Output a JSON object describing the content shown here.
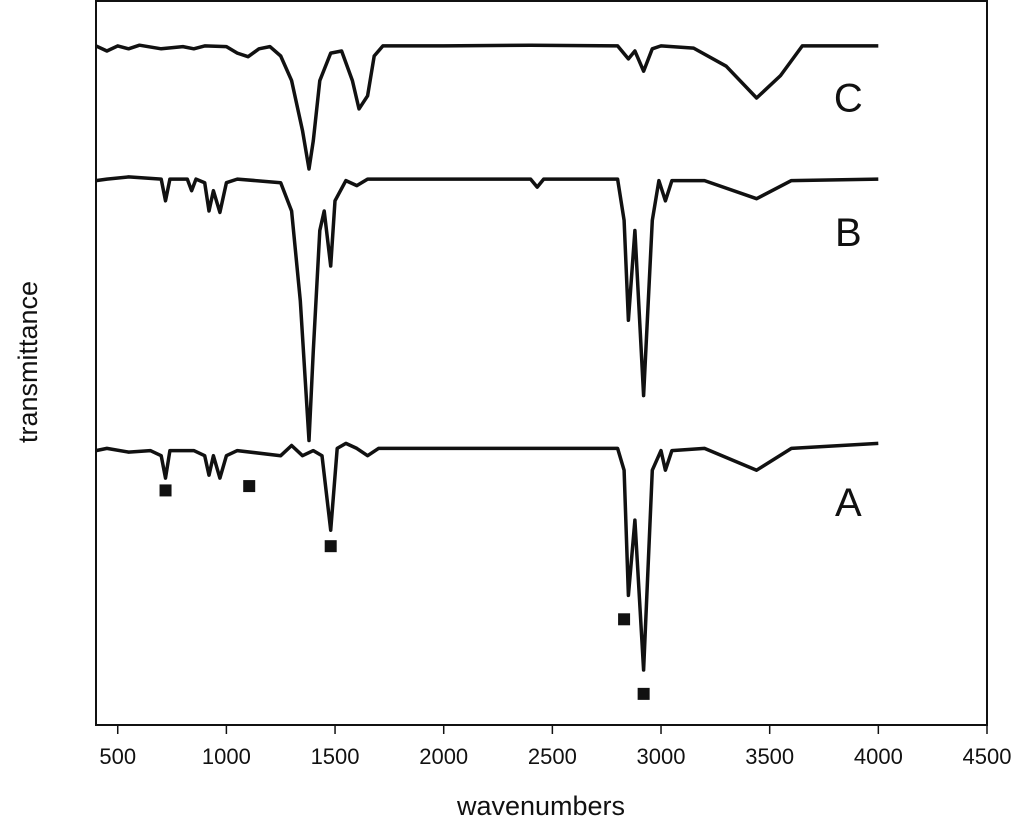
{
  "chart_data": {
    "type": "line",
    "x_label": "wavenumbers",
    "y_label": "transmittance",
    "xlim": [
      400,
      4500
    ],
    "ylim": [
      0,
      100
    ],
    "xticks": [
      500,
      1000,
      1500,
      2000,
      2500,
      3000,
      3500,
      4000,
      4500
    ],
    "color": "#111111",
    "series": [
      {
        "name": "C",
        "x": [
          400,
          450,
          500,
          550,
          600,
          700,
          800,
          850,
          900,
          1000,
          1050,
          1100,
          1150,
          1200,
          1250,
          1300,
          1350,
          1380,
          1400,
          1430,
          1480,
          1530,
          1580,
          1610,
          1650,
          1680,
          1720,
          2000,
          2400,
          2800,
          2850,
          2880,
          2920,
          2960,
          3000,
          3150,
          3300,
          3440,
          3550,
          3650,
          4000
        ],
        "values": [
          93.8,
          93.1,
          93.8,
          93.4,
          93.9,
          93.4,
          93.7,
          93.4,
          93.8,
          93.7,
          92.8,
          92.3,
          93.4,
          93.7,
          92.4,
          89.0,
          82.1,
          76.8,
          80.7,
          89.0,
          92.8,
          93.1,
          89.0,
          85.1,
          86.9,
          92.4,
          93.8,
          93.8,
          93.9,
          93.8,
          92.0,
          93.1,
          90.3,
          93.4,
          93.8,
          93.5,
          91.0,
          86.6,
          89.7,
          93.8,
          93.8
        ]
      },
      {
        "name": "B",
        "x": [
          400,
          450,
          550,
          700,
          720,
          740,
          820,
          840,
          860,
          900,
          920,
          940,
          970,
          1000,
          1050,
          1250,
          1300,
          1340,
          1380,
          1400,
          1430,
          1450,
          1480,
          1500,
          1550,
          1600,
          1650,
          2000,
          2400,
          2430,
          2460,
          2800,
          2830,
          2850,
          2880,
          2920,
          2960,
          2990,
          3020,
          3050,
          3200,
          3440,
          3600,
          4000
        ],
        "values": [
          75.2,
          75.4,
          75.7,
          75.4,
          72.4,
          75.4,
          75.4,
          73.8,
          75.4,
          74.9,
          71.0,
          73.8,
          70.8,
          74.9,
          75.4,
          74.9,
          71.0,
          58.6,
          39.3,
          51.7,
          68.3,
          71.0,
          63.4,
          72.4,
          75.2,
          74.5,
          75.4,
          75.4,
          75.4,
          74.3,
          75.4,
          75.4,
          69.7,
          55.9,
          68.3,
          45.5,
          69.7,
          75.2,
          72.4,
          75.2,
          75.2,
          72.7,
          75.2,
          75.4
        ]
      },
      {
        "name": "A",
        "x": [
          400,
          450,
          550,
          650,
          700,
          720,
          740,
          850,
          900,
          920,
          940,
          970,
          1000,
          1050,
          1250,
          1300,
          1350,
          1400,
          1440,
          1480,
          1510,
          1550,
          1600,
          1650,
          1700,
          2800,
          2830,
          2850,
          2880,
          2920,
          2960,
          3000,
          3020,
          3050,
          3200,
          3440,
          3600,
          4000
        ],
        "values": [
          37.9,
          38.2,
          37.7,
          37.9,
          37.2,
          34.1,
          37.9,
          37.9,
          37.2,
          34.5,
          37.2,
          34.1,
          37.2,
          37.9,
          37.2,
          38.6,
          37.2,
          37.9,
          37.2,
          26.9,
          38.2,
          38.9,
          38.2,
          37.2,
          38.2,
          38.2,
          35.2,
          17.9,
          28.3,
          7.6,
          35.2,
          37.9,
          35.2,
          37.9,
          38.2,
          35.2,
          38.2,
          38.9
        ]
      }
    ],
    "markers": {
      "x": [
        720,
        1105,
        1480,
        2830,
        2920
      ],
      "y": [
        32.4,
        33.0,
        24.7,
        14.6,
        4.3
      ]
    }
  }
}
